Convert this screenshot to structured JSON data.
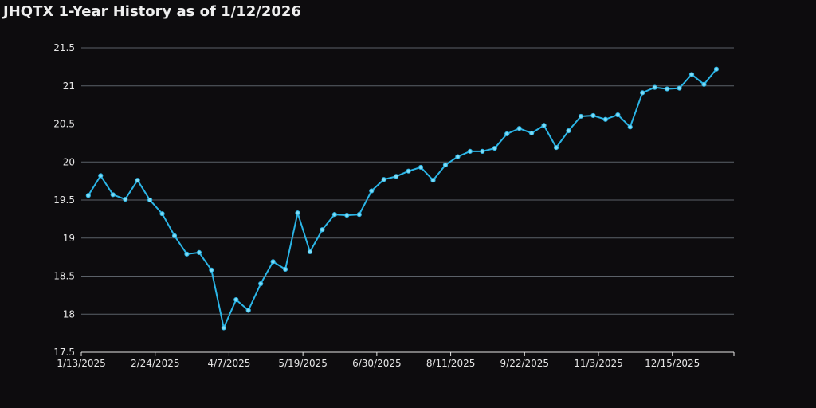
{
  "chart_data": {
    "type": "line",
    "title": "JHQTX 1-Year History as of 1/12/2026",
    "x": [
      "1/17/2025",
      "1/24/2025",
      "1/31/2025",
      "2/7/2025",
      "2/14/2025",
      "2/21/2025",
      "2/28/2025",
      "3/7/2025",
      "3/14/2025",
      "3/21/2025",
      "3/28/2025",
      "4/4/2025",
      "4/11/2025",
      "4/18/2025",
      "4/25/2025",
      "5/2/2025",
      "5/9/2025",
      "5/16/2025",
      "5/23/2025",
      "5/30/2025",
      "6/6/2025",
      "6/13/2025",
      "6/20/2025",
      "6/27/2025",
      "7/4/2025",
      "7/11/2025",
      "7/18/2025",
      "7/25/2025",
      "8/1/2025",
      "8/8/2025",
      "8/15/2025",
      "8/22/2025",
      "8/29/2025",
      "9/5/2025",
      "9/12/2025",
      "9/19/2025",
      "9/26/2025",
      "10/3/2025",
      "10/10/2025",
      "10/17/2025",
      "10/24/2025",
      "10/31/2025",
      "11/7/2025",
      "11/14/2025",
      "11/21/2025",
      "11/28/2025",
      "12/5/2025",
      "12/12/2025",
      "12/19/2025",
      "12/26/2025",
      "1/2/2026",
      "1/9/2026"
    ],
    "series": [
      {
        "name": "JHQTX",
        "color": "#2bb5e6",
        "values": [
          19.56,
          19.82,
          19.57,
          19.51,
          19.76,
          19.5,
          19.32,
          19.03,
          18.79,
          18.81,
          18.58,
          17.82,
          18.19,
          18.05,
          18.4,
          18.69,
          18.59,
          19.33,
          18.82,
          19.11,
          19.31,
          19.3,
          19.31,
          19.62,
          19.77,
          19.81,
          19.88,
          19.93,
          19.76,
          19.96,
          20.07,
          20.14,
          20.14,
          20.18,
          20.37,
          20.44,
          20.38,
          20.48,
          20.19,
          20.41,
          20.6,
          20.61,
          20.56,
          20.62,
          20.46,
          20.91,
          20.98,
          20.96,
          20.97,
          21.15,
          21.02,
          21.22
        ]
      }
    ],
    "xlim": [
      "1/13/2025",
      "1/19/2026"
    ],
    "xticks": [
      "1/13/2025",
      "2/24/2025",
      "4/7/2025",
      "5/19/2025",
      "6/30/2025",
      "8/11/2025",
      "9/22/2025",
      "11/3/2025",
      "12/15/2025"
    ],
    "ylim": [
      17.5,
      21.5
    ],
    "yticks": [
      17.5,
      18,
      18.5,
      19,
      19.5,
      20,
      20.5,
      21,
      21.5
    ],
    "grid": true
  }
}
